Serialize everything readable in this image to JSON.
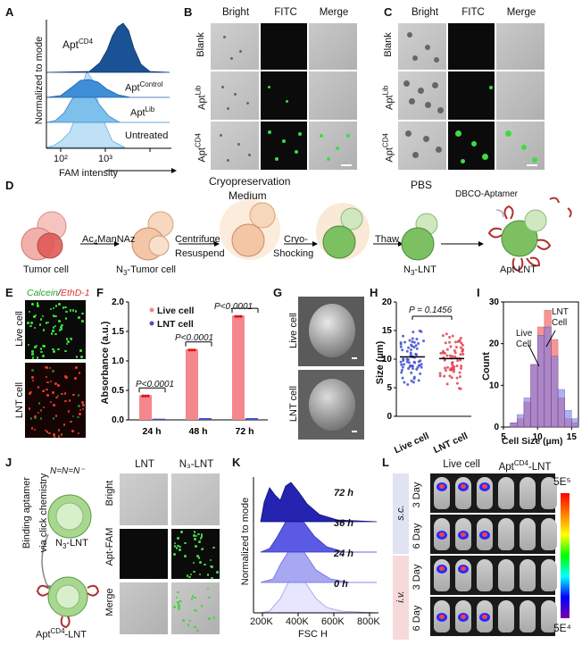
{
  "panels": {
    "A": "A",
    "B": "B",
    "C": "C",
    "D": "D",
    "E": "E",
    "F": "F",
    "G": "G",
    "H": "H",
    "I": "I",
    "J": "J",
    "K": "K",
    "L": "L"
  },
  "panelA": {
    "ylabel": "Normalized to mode",
    "xlabel": "FAM intensity",
    "xticks": [
      "10²",
      "10³"
    ],
    "labels": {
      "cd4": "Apt",
      "cd4_sup": "CD4",
      "control": "Apt",
      "control_sup": "Control",
      "lib": "Apt",
      "lib_sup": "Lib",
      "untreated": "Untreated"
    }
  },
  "panelB": {
    "cols": [
      "Bright",
      "FITC",
      "Merge"
    ],
    "rows": [
      {
        "main": "Blank",
        "sup": ""
      },
      {
        "main": "Apt",
        "sup": "Lib"
      },
      {
        "main": "Apt",
        "sup": "CD4"
      }
    ]
  },
  "panelC": {
    "cols": [
      "Bright",
      "FITC",
      "Merge"
    ],
    "rows": [
      {
        "main": "Blank",
        "sup": ""
      },
      {
        "main": "Apt",
        "sup": "Lib"
      },
      {
        "main": "Apt",
        "sup": "CD4"
      }
    ]
  },
  "panelD": {
    "tumor_cell": "Tumor cell",
    "ac4": "Ac",
    "ac4_sub": "4",
    "ac4_rest": "ManNAz",
    "n3_tumor": "N",
    "n3_tumor_sub": "3",
    "n3_tumor_rest": "-Tumor cell",
    "centrifuge": "Centrifuge",
    "resuspend": "Resuspend",
    "cryo_medium1": "Cryopreservation",
    "cryo_medium2": "Medium",
    "cryo1": "Cryo-",
    "cryo2": "Shocking",
    "thaw": "Thaw",
    "pbs": "PBS",
    "n3_lnt": "N",
    "n3_lnt_sub": "3",
    "n3_lnt_rest": "-LNT",
    "dbco": "DBCO-Aptamer",
    "apt_lnt": "Apt-LNT"
  },
  "panelE": {
    "calcein": "Calcein",
    "sep": "/",
    "ethd": "EthD-1",
    "rows": [
      "Live cell",
      "LNT cell"
    ]
  },
  "panelF": {
    "ylabel": "Absorbance (a.u.)",
    "legend": [
      "Live cell",
      "LNT cell"
    ],
    "pvals": [
      "P<0.0001",
      "P<0.0001",
      "P<0.0001"
    ]
  },
  "panelG": {
    "rows": [
      "Live cell",
      "LNT cell"
    ]
  },
  "panelH": {
    "ylabel": "Size (µm)",
    "pval": "P = 0.1456",
    "xticks": [
      "Live cell",
      "LNT cell"
    ]
  },
  "panelI": {
    "ylabel": "Count",
    "xlabel": "Cell Size (µm)",
    "live": [
      "Live",
      "Cell"
    ],
    "lnt": [
      "LNT",
      "Cell"
    ]
  },
  "panelJ": {
    "binding1": "Binding aptamer",
    "binding2": "via click chemistry",
    "azide": "N=N=N⁻",
    "n3_lnt": "N",
    "n3_lnt_sub": "3",
    "n3_lnt_rest": "-LNT",
    "apt_lnt": "Apt",
    "apt_lnt_sup": "CD4",
    "apt_lnt_rest": "-LNT",
    "cols": [
      "LNT",
      "N₃-LNT"
    ],
    "rows": [
      "Bright",
      "Apt-FAM",
      "Merge"
    ]
  },
  "panelK": {
    "ylabel": "Normalized to mode",
    "xlabel": "FSC H",
    "xticks": [
      "200K",
      "400K",
      "600K",
      "800K"
    ],
    "times": [
      "72 h",
      "36 h",
      "24 h",
      "0 h"
    ]
  },
  "panelL": {
    "cols": [
      "Live cell",
      "Apt",
      "CD4",
      "-LNT"
    ],
    "routes": [
      "s.c.",
      "i.v."
    ],
    "days": [
      "3 Day",
      "6 Day",
      "3 Day",
      "6 Day"
    ],
    "scale_max": "5E⁵",
    "scale_min": "5E⁴"
  },
  "chart_data": [
    {
      "type": "bar",
      "title": "F",
      "categories": [
        "24 h",
        "48 h",
        "72 h"
      ],
      "series": [
        {
          "name": "Live cell",
          "values": [
            0.42,
            1.2,
            1.77
          ],
          "color": "#f4878c"
        },
        {
          "name": "LNT cell",
          "values": [
            0.02,
            0.03,
            0.03
          ],
          "color": "#4a4fc4"
        }
      ],
      "ylabel": "Absorbance (a.u.)",
      "ylim": [
        0,
        2.0
      ],
      "yticks": [
        0.0,
        0.5,
        1.0,
        1.5,
        2.0
      ],
      "yticklabels": [
        "0.0",
        "0.5",
        "1.0",
        "1.5",
        "2.0"
      ]
    },
    {
      "type": "scatter",
      "title": "H",
      "categories": [
        "Live cell",
        "LNT cell"
      ],
      "means": [
        10.4,
        10.1
      ],
      "ylabel": "Size (µm)",
      "ylim": [
        0,
        20
      ],
      "yticks": [
        0,
        5,
        10,
        15,
        20
      ],
      "yticklabels": [
        "0",
        "5",
        "10",
        "15",
        "20"
      ]
    },
    {
      "type": "bar",
      "title": "I",
      "x": [
        6,
        7,
        8,
        9,
        10,
        11,
        12,
        13,
        14,
        15
      ],
      "series": [
        {
          "name": "Live cell",
          "values": [
            1,
            2,
            6,
            15,
            24,
            28,
            21,
            7,
            2,
            1
          ],
          "color": "#f26a6a"
        },
        {
          "name": "LNT cell",
          "values": [
            1,
            3,
            7,
            15,
            22,
            24,
            17,
            9,
            4,
            2
          ],
          "color": "#7a7ee8"
        }
      ],
      "xlabel": "Cell Size (µm)",
      "ylabel": "Count",
      "ylim": [
        0,
        30
      ],
      "xticks": [
        5,
        10,
        15
      ],
      "xticklabels": [
        "5",
        "10",
        "15"
      ],
      "yticks": [
        0,
        10,
        20,
        30
      ],
      "yticklabels": [
        "0",
        "10",
        "20",
        "30"
      ]
    }
  ]
}
